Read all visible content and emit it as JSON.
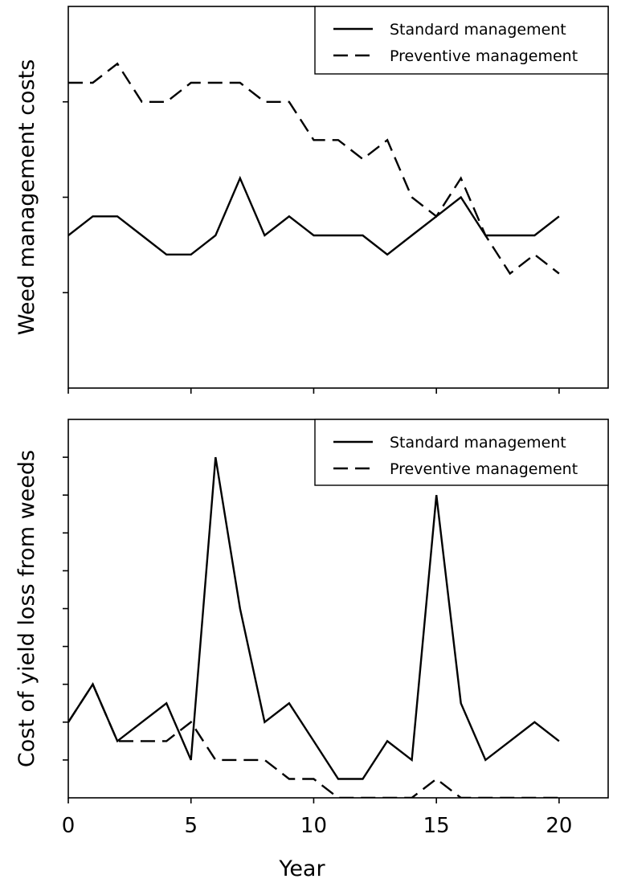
{
  "chart_data": [
    {
      "type": "line",
      "ylabel": "Weed management costs",
      "xlabel": "",
      "xlim": [
        0,
        22
      ],
      "ylim": [
        0,
        4
      ],
      "x_ticks": [
        0,
        5,
        10,
        15,
        20
      ],
      "y_ticks": [
        1,
        2,
        3
      ],
      "y_tick_labels_shown": false,
      "grid": false,
      "legend_position": "top-right",
      "x": [
        0,
        1,
        2,
        3,
        4,
        5,
        6,
        7,
        8,
        9,
        10,
        11,
        12,
        13,
        14,
        15,
        16,
        17,
        18,
        19,
        20
      ],
      "series": [
        {
          "name": "Standard management",
          "style": "solid",
          "values": [
            1.6,
            1.8,
            1.8,
            1.6,
            1.4,
            1.4,
            1.6,
            2.2,
            1.6,
            1.8,
            1.6,
            1.6,
            1.6,
            1.4,
            1.6,
            1.8,
            2.0,
            1.6,
            1.6,
            1.6,
            1.8
          ]
        },
        {
          "name": "Preventive management",
          "style": "dashed",
          "values": [
            3.2,
            3.2,
            3.4,
            3.0,
            3.0,
            3.2,
            3.2,
            3.2,
            3.0,
            3.0,
            2.6,
            2.6,
            2.4,
            2.6,
            2.0,
            1.8,
            2.2,
            1.6,
            1.2,
            1.4,
            1.2
          ]
        }
      ]
    },
    {
      "type": "line",
      "ylabel": "Cost of yield loss from weeds",
      "xlabel": "Year",
      "xlim": [
        0,
        22
      ],
      "ylim": [
        0,
        10
      ],
      "x_ticks": [
        0,
        5,
        10,
        15,
        20
      ],
      "x_tick_labels": [
        "0",
        "5",
        "10",
        "15",
        "20"
      ],
      "y_ticks": [
        1,
        2,
        3,
        4,
        5,
        6,
        7,
        8,
        9
      ],
      "y_tick_labels_shown": false,
      "grid": false,
      "legend_position": "top-right",
      "x": [
        0,
        1,
        2,
        3,
        4,
        5,
        6,
        7,
        8,
        9,
        10,
        11,
        12,
        13,
        14,
        15,
        16,
        17,
        18,
        19,
        20
      ],
      "series": [
        {
          "name": "Standard management",
          "style": "solid",
          "values": [
            2,
            3,
            1.5,
            2,
            2.5,
            1,
            9,
            5,
            2,
            2.5,
            1.5,
            0.5,
            0.5,
            1.5,
            1,
            8,
            2.5,
            1,
            1.5,
            2,
            1.5
          ]
        },
        {
          "name": "Preventive management",
          "style": "dashed",
          "values": [
            2,
            3,
            1.5,
            1.5,
            1.5,
            2,
            1,
            1,
            1,
            0.5,
            0.5,
            0,
            0,
            0,
            0,
            0.5,
            0,
            0,
            0,
            0,
            0
          ]
        }
      ]
    }
  ]
}
